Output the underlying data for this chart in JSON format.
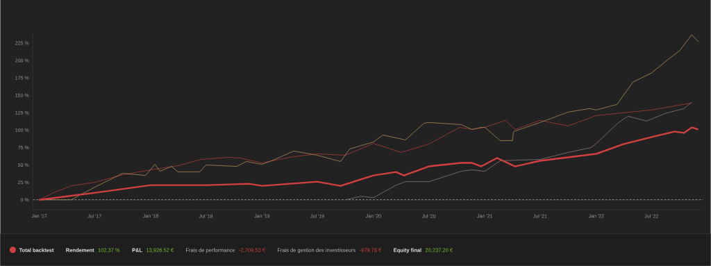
{
  "chart_data": {
    "type": "line",
    "legend": "bottom left",
    "series": [
      {
        "name": "Total backtest",
        "color": "#d3403f",
        "x": [
          "2017-01-01",
          "2017-07-01",
          "2018-01-01",
          "2018-07-01",
          "2018-11-20",
          "2019-01-01",
          "2019-07-01",
          "2019-09-15",
          "2020-01-01",
          "2020-03-15",
          "2020-04-10",
          "2020-07-01",
          "2020-10-15",
          "2020-11-20",
          "2020-12-20",
          "2021-02-10",
          "2021-04-10",
          "2021-07-01",
          "2022-01-01",
          "2022-04-01",
          "2022-07-01",
          "2022-09-15",
          "2022-10-15",
          "2022-11-10",
          "2022-12-01"
        ],
        "values": [
          0,
          10,
          21,
          21,
          23,
          20,
          26,
          20,
          35,
          40,
          35,
          48,
          53,
          53,
          48,
          60,
          48,
          56,
          66,
          80,
          90,
          98,
          96,
          104,
          101
        ]
      },
      {
        "color": "#a8383b",
        "x": [
          "2017-01-01",
          "2017-02-15",
          "2017-04-15",
          "2017-07-01",
          "2017-10-01",
          "2018-01-01",
          "2018-04-01",
          "2018-06-15",
          "2018-09-15",
          "2018-10-20",
          "2019-01-01",
          "2019-04-01",
          "2019-07-01",
          "2019-10-01",
          "2020-01-01",
          "2020-04-01",
          "2020-07-01",
          "2020-10-10",
          "2020-11-20",
          "2021-01-01",
          "2021-03-10",
          "2021-04-10",
          "2021-07-01",
          "2021-10-01",
          "2022-01-01",
          "2022-07-01",
          "2022-11-10"
        ],
        "values": [
          0,
          10,
          20,
          25,
          36,
          43,
          49,
          58,
          61,
          60,
          53,
          61,
          66,
          64,
          81,
          68,
          80,
          104,
          101,
          104,
          114,
          101,
          114,
          106,
          121,
          129,
          139
        ]
      },
      {
        "color": "#a88c55",
        "x": [
          "2017-01-01",
          "2017-04-15",
          "2017-07-01",
          "2017-10-01",
          "2017-12-15",
          "2018-01-15",
          "2018-02-01",
          "2018-03-10",
          "2018-04-01",
          "2018-06-10",
          "2018-07-01",
          "2018-10-10",
          "2018-11-10",
          "2019-01-01",
          "2019-02-01",
          "2019-04-15",
          "2019-07-01",
          "2019-09-15",
          "2019-10-15",
          "2020-01-01",
          "2020-02-01",
          "2020-04-15",
          "2020-06-15",
          "2020-07-01",
          "2020-10-15",
          "2020-11-20",
          "2020-12-20",
          "2021-01-01",
          "2021-02-20",
          "2021-04-01",
          "2021-04-05",
          "2021-07-01",
          "2021-10-01",
          "2021-12-10",
          "2022-01-01",
          "2022-03-10",
          "2022-05-01",
          "2022-07-01",
          "2022-08-20",
          "2022-10-01",
          "2022-11-10",
          "2022-12-01"
        ],
        "values": [
          0,
          0,
          18,
          38,
          35,
          51,
          41,
          48,
          40,
          40,
          50,
          48,
          55,
          51,
          56,
          70,
          64,
          55,
          73,
          83,
          93,
          86,
          110,
          111,
          108,
          101,
          104,
          104,
          85,
          85,
          98,
          111,
          126,
          131,
          129,
          137,
          169,
          182,
          200,
          214,
          237,
          227
        ]
      },
      {
        "color": "#8e7473",
        "x": [
          "2019-10-01",
          "2019-11-20",
          "2020-01-01",
          "2020-03-15",
          "2020-04-15",
          "2020-07-01",
          "2020-10-15",
          "2020-11-20",
          "2021-01-01",
          "2021-02-20",
          "2021-07-01",
          "2021-10-01",
          "2021-12-15",
          "2022-01-01",
          "2022-03-15",
          "2022-04-15",
          "2022-06-15",
          "2022-08-15",
          "2022-10-15",
          "2022-11-10"
        ],
        "values": [
          0,
          5,
          3,
          21,
          26,
          26,
          41,
          43,
          41,
          56,
          58,
          68,
          75,
          81,
          111,
          120,
          113,
          124,
          131,
          140
        ]
      }
    ],
    "xlim": [
      "2016-12-11",
      "2022-12-17"
    ],
    "ylim": [
      -14,
      240
    ],
    "xticks": [
      {
        "value": "2017-01-01",
        "label": "Jan '17"
      },
      {
        "value": "2017-07-01",
        "label": "Jul '17"
      },
      {
        "value": "2018-01-01",
        "label": "Jan '18"
      },
      {
        "value": "2018-07-01",
        "label": "Jul '18"
      },
      {
        "value": "2019-01-01",
        "label": "Jan '19"
      },
      {
        "value": "2019-07-01",
        "label": "Jul '19"
      },
      {
        "value": "2020-01-01",
        "label": "Jan '20"
      },
      {
        "value": "2020-07-01",
        "label": "Jul '20"
      },
      {
        "value": "2021-01-01",
        "label": "Jan '21"
      },
      {
        "value": "2021-07-01",
        "label": "Jul '21"
      },
      {
        "value": "2022-01-01",
        "label": "Jan '22"
      },
      {
        "value": "2022-07-01",
        "label": "Jul '22"
      }
    ],
    "yticks": [
      {
        "value": 0,
        "label": "0 %"
      },
      {
        "value": 25,
        "label": "25 %"
      },
      {
        "value": 50,
        "label": "50 %"
      },
      {
        "value": 75,
        "label": "75 %"
      },
      {
        "value": 100,
        "label": "100 %"
      },
      {
        "value": 125,
        "label": "125 %"
      },
      {
        "value": 150,
        "label": "150 %"
      },
      {
        "value": 175,
        "label": "175 %"
      },
      {
        "value": 200,
        "label": "200 %"
      },
      {
        "value": 225,
        "label": "225 %"
      }
    ],
    "ref_lines": [
      {
        "axis": "y",
        "value": 0,
        "color": "#c8c8c8",
        "line_style": "dashed"
      }
    ],
    "annotations": [
      "Rendement",
      "102.37 %",
      "P&L",
      "13,926.52 €",
      "Frais de performance",
      "-2,709.53 €",
      "Frais de gestion des investisseurs",
      "-979.78 €",
      "Equity final",
      "20,237.20 €"
    ]
  }
}
